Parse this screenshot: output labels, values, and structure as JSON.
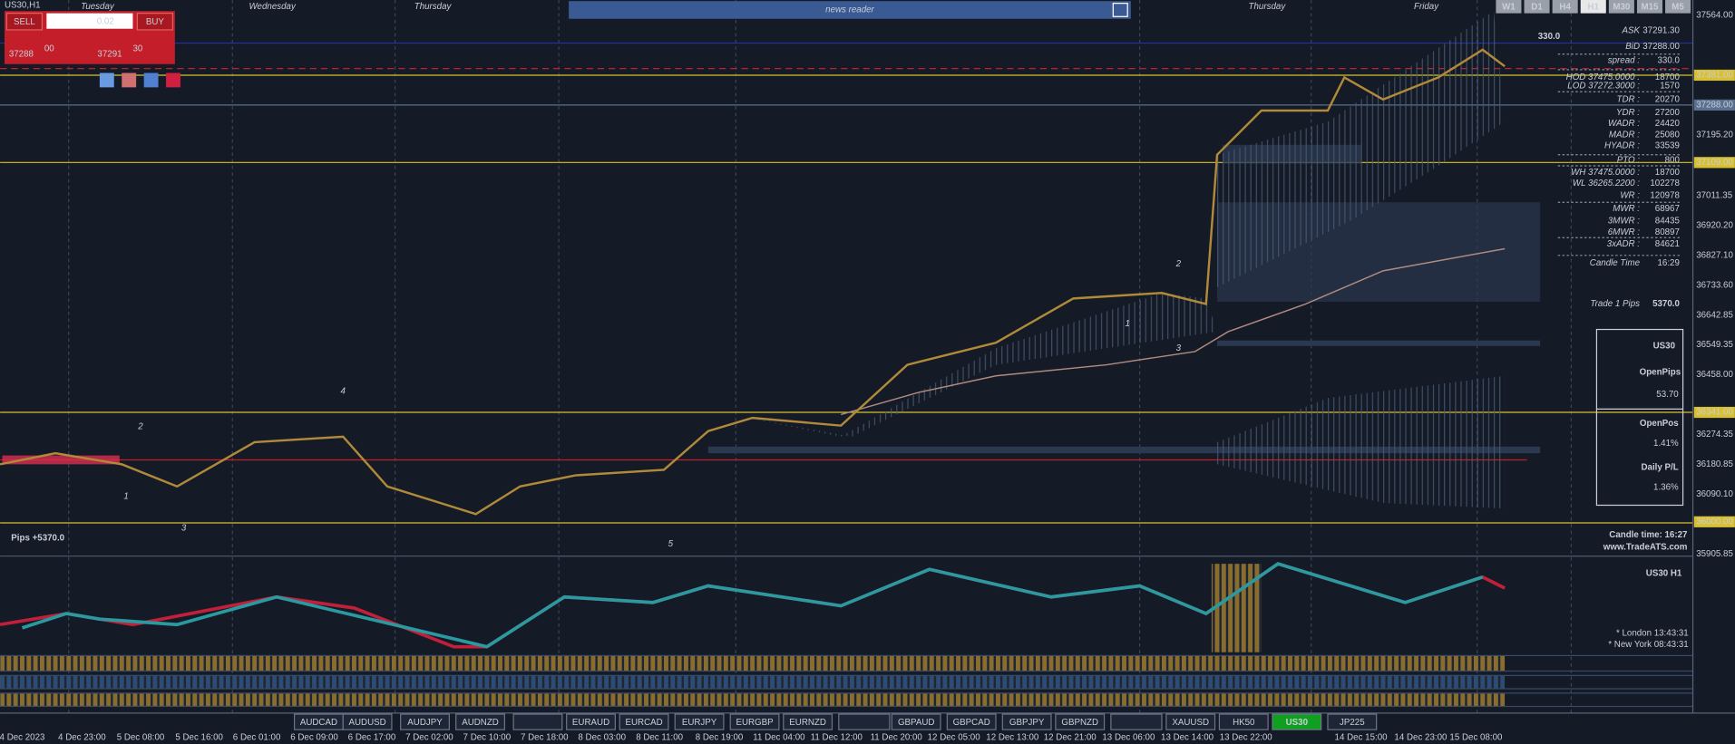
{
  "symbol_label": "US30,H1",
  "trade_panel": {
    "sell": "SELL",
    "buy": "BUY",
    "lot": "0.02",
    "bid_main": "37288",
    "bid_big": "00",
    "ask_main": "37291",
    "ask_big": "30"
  },
  "news_reader": "news reader",
  "days": [
    "Tuesday",
    "Wednesday",
    "Thursday",
    "Thursday",
    "Friday"
  ],
  "timeframes": [
    "W1",
    "D1",
    "H4",
    "H1",
    "M30",
    "M15",
    "M5"
  ],
  "active_timeframe": "H1",
  "spread_big": "330.0",
  "price_axis": [
    "37564.00",
    "37381.00",
    "37288.00",
    "37195.20",
    "37109.00",
    "37011.35",
    "36920.20",
    "36827.10",
    "36733.60",
    "36642.85",
    "36549.35",
    "36458.00",
    "36341.00",
    "36274.35",
    "36180.85",
    "36090.10",
    "36000.00",
    "35905.85"
  ],
  "info": [
    {
      "label": "ASK",
      "value": "37291.30"
    },
    {
      "label": "BiD",
      "value": "37288.00"
    },
    {
      "label": "spread :",
      "value": "330.0"
    },
    {
      "label": "HOD 37475.0000 :",
      "value": "18700"
    },
    {
      "label": "LOD 37272.3000 :",
      "value": "1570"
    },
    {
      "label": "TDR :",
      "value": "20270"
    },
    {
      "label": "YDR :",
      "value": "27200"
    },
    {
      "label": "WADR :",
      "value": "24420"
    },
    {
      "label": "MADR :",
      "value": "25080"
    },
    {
      "label": "HYADR :",
      "value": "33539"
    },
    {
      "label": "PTO :",
      "value": "800"
    },
    {
      "label": "WH 37475.0000 :",
      "value": "18700"
    },
    {
      "label": "WL 36265.2200 :",
      "value": "102278"
    },
    {
      "label": "WR :",
      "value": "120978"
    },
    {
      "label": "MWR :",
      "value": "68967"
    },
    {
      "label": "3MWR :",
      "value": "84435"
    },
    {
      "label": "6MWR :",
      "value": "80897"
    },
    {
      "label": "3xADR :",
      "value": "84621"
    },
    {
      "label": "Candle Time",
      "value": "16:29"
    }
  ],
  "trade_pips": {
    "label": "Trade 1 Pips",
    "value": "5370.0"
  },
  "account_box": {
    "symbol": "US30",
    "open_pips_label": "OpenPips",
    "open_pips": "53.70",
    "open_pos_label": "OpenPos",
    "open_pos": "1.41%",
    "daily_label": "Daily P/L",
    "daily": "1.36%"
  },
  "pips_total": "Pips +5370.0",
  "candle_time": "Candle time: 16:27",
  "website": "www.TradeATS.com",
  "indicator_title": "US30  H1",
  "sessions": [
    "* London  13:43:31",
    "* New York  08:43:31"
  ],
  "annotations": [
    "2",
    "1",
    "3",
    "4",
    "5",
    "2",
    "1",
    "3"
  ],
  "symbols": [
    "AUDCAD",
    "AUDUSD",
    "AUDJPY",
    "AUDNZD",
    "EURAUD",
    "EURCAD",
    "EURJPY",
    "EURGBP",
    "EURNZD",
    "GBPAUD",
    "GBPCAD",
    "GBPJPY",
    "GBPNZD",
    "XAUUSD",
    "HK50",
    "US30",
    "JP225"
  ],
  "active_symbol": "US30",
  "time_axis": [
    "4 Dec 2023",
    "4 Dec 23:00",
    "5 Dec 08:00",
    "5 Dec 16:00",
    "6 Dec 01:00",
    "6 Dec 09:00",
    "6 Dec 17:00",
    "7 Dec 02:00",
    "7 Dec 10:00",
    "7 Dec 18:00",
    "8 Dec 03:00",
    "8 Dec 11:00",
    "8 Dec 19:00",
    "11 Dec 04:00",
    "11 Dec 12:00",
    "11 Dec 20:00",
    "12 Dec 05:00",
    "12 Dec 13:00",
    "12 Dec 21:00",
    "13 Dec 06:00",
    "13 Dec 14:00",
    "13 Dec 22:00",
    "14 Dec 15:00",
    "14 Dec 23:00",
    "15 Dec 08:00"
  ]
}
